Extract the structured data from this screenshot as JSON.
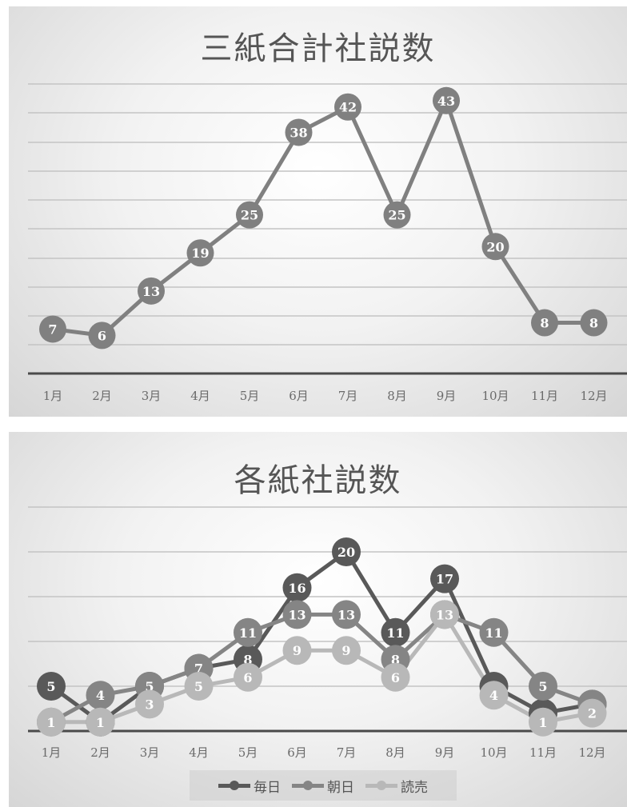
{
  "chart_data": [
    {
      "type": "line",
      "title": "三紙合計社説数",
      "categories": [
        "1月",
        "2月",
        "3月",
        "4月",
        "5月",
        "6月",
        "7月",
        "8月",
        "9月",
        "10月",
        "11月",
        "12月"
      ],
      "series": [
        {
          "values": [
            7,
            6,
            13,
            19,
            25,
            38,
            42,
            25,
            43,
            20,
            8,
            8
          ],
          "color": "#808080"
        }
      ],
      "ylim": [
        0,
        46
      ],
      "grid": true,
      "data_labels": true
    },
    {
      "type": "line",
      "title": "各紙社説数",
      "categories": [
        "1月",
        "2月",
        "3月",
        "4月",
        "5月",
        "6月",
        "7月",
        "8月",
        "9月",
        "10月",
        "11月",
        "12月"
      ],
      "series": [
        {
          "name": "毎日",
          "values": [
            5,
            1,
            5,
            7,
            8,
            16,
            20,
            11,
            17,
            5,
            2,
            3
          ],
          "color": "#595959"
        },
        {
          "name": "朝日",
          "values": [
            1,
            4,
            5,
            7,
            11,
            13,
            13,
            8,
            13,
            11,
            5,
            3
          ],
          "color": "#858585"
        },
        {
          "name": "読売",
          "values": [
            1,
            1,
            3,
            5,
            6,
            9,
            9,
            6,
            13,
            4,
            1,
            2
          ],
          "color": "#b8b8b8"
        }
      ],
      "ylim": [
        0,
        25
      ],
      "grid": true,
      "legend": "bottom",
      "data_labels": true
    }
  ]
}
